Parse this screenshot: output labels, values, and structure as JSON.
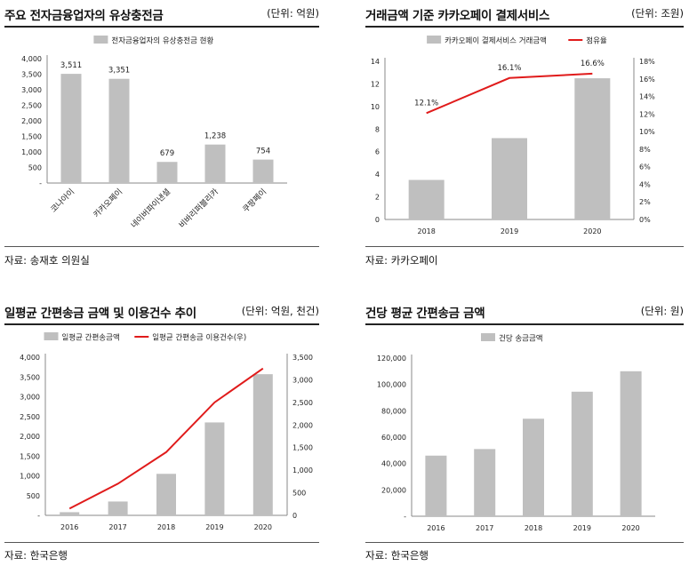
{
  "panels": [
    {
      "title": "주요 전자금융업자의 유상충전금",
      "unit": "(단위: 억원)",
      "source": "자료: 송재호 의원실"
    },
    {
      "title": "거래금액 기준 카카오페이 결제서비스",
      "unit": "(단위: 조원)",
      "source": "자료: 카카오페이"
    },
    {
      "title": "일평균 간편송금 금액 및 이용건수 추이",
      "unit": "(단위: 억원, 천건)",
      "source": "자료: 한국은행"
    },
    {
      "title": "건당 평균 간편송금 금액",
      "unit": "(단위: 원)",
      "source": "자료: 한국은행"
    }
  ],
  "chart_data": [
    {
      "type": "bar",
      "categories": [
        "코나아이",
        "카카오페이",
        "네이버파이낸셜",
        "비바리퍼블리카",
        "쿠팡페이"
      ],
      "series": [
        {
          "name": "전자금융업자의 유상충전금 현황",
          "values": [
            3511,
            3351,
            679,
            1238,
            754
          ],
          "color": "#bfbfbf"
        }
      ],
      "data_labels": [
        "3,511",
        "3,351",
        "679",
        "1,238",
        "754"
      ],
      "ylim": [
        0,
        4000
      ],
      "yticks": [
        "-",
        "500",
        "1,000",
        "1,500",
        "2,000",
        "2,500",
        "3,000",
        "3,500",
        "4,000"
      ],
      "legend": "top-center"
    },
    {
      "type": "bar",
      "categories": [
        "2018",
        "2019",
        "2020"
      ],
      "series": [
        {
          "name": "카카오페이 결제서비스 거래금액",
          "values": [
            3.5,
            7.2,
            12.5
          ],
          "color": "#bfbfbf"
        },
        {
          "name": "점유율",
          "values": [
            12.1,
            16.1,
            16.6
          ],
          "type": "line",
          "axis": "right",
          "color": "#e01b1b"
        }
      ],
      "data_labels": [
        "12.1%",
        "16.1%",
        "16.6%"
      ],
      "ylim": [
        0,
        14
      ],
      "yticks": [
        "0",
        "2",
        "4",
        "6",
        "8",
        "10",
        "12",
        "14"
      ],
      "y2lim": [
        0,
        18
      ],
      "y2ticks": [
        "0%",
        "2%",
        "4%",
        "6%",
        "8%",
        "10%",
        "12%",
        "14%",
        "16%",
        "18%"
      ],
      "legend": "top-center"
    },
    {
      "type": "bar",
      "categories": [
        "2016",
        "2017",
        "2018",
        "2019",
        "2020"
      ],
      "series": [
        {
          "name": "일평균 간편송금액",
          "values": [
            80,
            350,
            1050,
            2350,
            3570
          ],
          "color": "#bfbfbf"
        },
        {
          "name": "일평균 간편송금 이용건수(우)",
          "values": [
            150,
            700,
            1400,
            2500,
            3250
          ],
          "type": "line",
          "axis": "right",
          "color": "#e01b1b"
        }
      ],
      "ylim": [
        0,
        4000
      ],
      "yticks": [
        "-",
        "500",
        "1,000",
        "1,500",
        "2,000",
        "2,500",
        "3,000",
        "3,500",
        "4,000"
      ],
      "y2lim": [
        0,
        3500
      ],
      "y2ticks": [
        "0",
        "500",
        "1,000",
        "1,500",
        "2,000",
        "2,500",
        "3,000",
        "3,500"
      ],
      "legend": "top-center"
    },
    {
      "type": "bar",
      "categories": [
        "2016",
        "2017",
        "2018",
        "2019",
        "2020"
      ],
      "series": [
        {
          "name": "건당 송금금액",
          "values": [
            46000,
            51000,
            74000,
            94500,
            110000
          ],
          "color": "#bfbfbf"
        }
      ],
      "ylim": [
        0,
        120000
      ],
      "yticks": [
        "-",
        "20,000",
        "40,000",
        "60,000",
        "80,000",
        "100,000",
        "120,000"
      ],
      "legend": "top-left"
    }
  ]
}
